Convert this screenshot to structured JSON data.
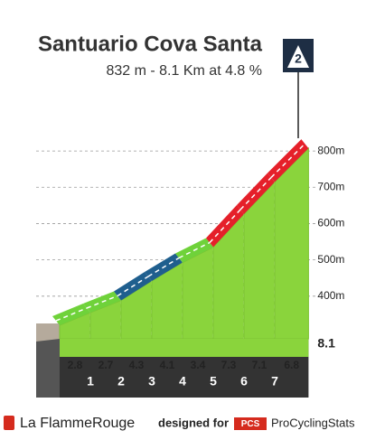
{
  "chart_data": {
    "type": "climb-profile",
    "title": "Santuario Cova Santa",
    "subtitle": "832 m - 8.1 Km at 4.8 %",
    "category": "2",
    "categories": [
      "1",
      "2",
      "3",
      "4",
      "5",
      "6",
      "7",
      "8.1"
    ],
    "values": [
      2.8,
      2.7,
      4.3,
      4.1,
      3.4,
      7.3,
      7.1,
      6.8
    ],
    "colors": [
      "#6fd23a",
      "#6fd23a",
      "#1f5f8e",
      "#1f5f8e",
      "#6fd23a",
      "#e5202a",
      "#e5202a",
      "#e5202a"
    ],
    "ylim": [
      300,
      850
    ],
    "yticks": [
      {
        "value": 400,
        "label": "400m"
      },
      {
        "value": 500,
        "label": "500m"
      },
      {
        "value": 600,
        "label": "600m"
      },
      {
        "value": 700,
        "label": "700m"
      },
      {
        "value": 800,
        "label": "800m"
      }
    ],
    "grid": true
  },
  "footer": {
    "brand": "La FlammeRouge",
    "designed": "designed for",
    "pcs": "PCS",
    "site": "ProCyclingStats"
  }
}
